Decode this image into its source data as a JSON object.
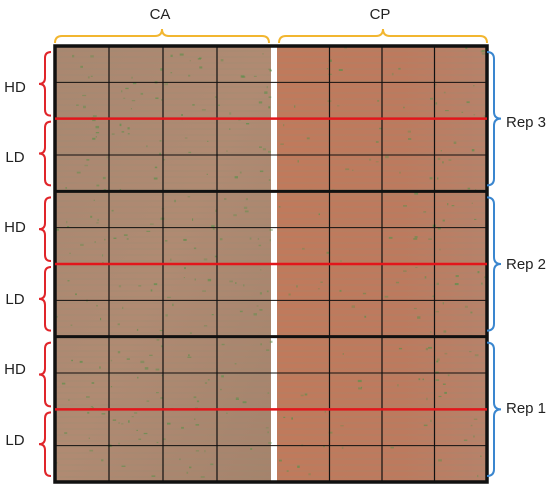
{
  "figure": {
    "top_labels": [
      {
        "id": "ca",
        "text": "CA"
      },
      {
        "id": "cp",
        "text": "CP"
      }
    ],
    "left_labels": [
      {
        "id": "hd-3",
        "text": "HD"
      },
      {
        "id": "ld-3",
        "text": "LD"
      },
      {
        "id": "hd-2",
        "text": "HD"
      },
      {
        "id": "ld-2",
        "text": "LD"
      },
      {
        "id": "hd-1",
        "text": "HD"
      },
      {
        "id": "ld-1",
        "text": "LD"
      }
    ],
    "right_labels": [
      {
        "id": "rep-3",
        "text": "Rep 3"
      },
      {
        "id": "rep-2",
        "text": "Rep 2"
      },
      {
        "id": "rep-1",
        "text": "Rep 1"
      }
    ],
    "colors": {
      "top_bracket": "#f2b630",
      "left_bracket": "#e0252a",
      "right_bracket": "#3a86cf",
      "density_divider": "#e2161b",
      "plot_grid": "#111111",
      "soil": "#b9785d",
      "crop": "#5e8f4b",
      "center_strip": "#ffffff"
    },
    "layout": {
      "columns_per_treatment": 4,
      "rows_per_rep": 4,
      "reps": 3
    }
  }
}
